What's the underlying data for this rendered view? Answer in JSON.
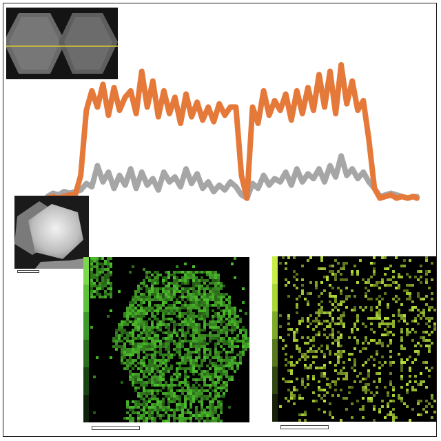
{
  "figure": {
    "background": "#ffffff",
    "border_color": "#1a1a1a"
  },
  "insets": {
    "top_image": {
      "icon": "tem-hexagonal-particles-image",
      "line_scan_color": "#d8c83a"
    },
    "stem_image": {
      "icon": "stem-hexagonal-particle-image"
    }
  },
  "maps": [
    {
      "icon": "elemental-map-green",
      "color": "#4ec02e",
      "legend_colors": [
        "#7ad84a",
        "#5cc23a",
        "#3f9a2c",
        "#2b6e20",
        "#184414",
        "#0c200a"
      ]
    },
    {
      "icon": "elemental-map-yellow-green",
      "color": "#b6e03a",
      "legend_colors": [
        "#c8ec48",
        "#a8d838",
        "#7eaa2a",
        "#56781e",
        "#324614",
        "#18200a"
      ]
    }
  ],
  "chart_data": {
    "type": "line",
    "title": "",
    "xlabel": "",
    "ylabel": "",
    "grid": false,
    "legend": "none",
    "xlim": [
      0,
      100
    ],
    "ylim": [
      0,
      100
    ],
    "series": [
      {
        "color": "#e5793a",
        "x": [
          0,
          1.5,
          3,
          4.5,
          6,
          7.5,
          9,
          10.5,
          12,
          13.5,
          15,
          16.5,
          18,
          19.5,
          21,
          22.5,
          24,
          25.5,
          27,
          28.5,
          30,
          31.5,
          33,
          34.5,
          36,
          37.5,
          39,
          40.5,
          42,
          43.5,
          45,
          46.5,
          48,
          49.5,
          51,
          52.5,
          54,
          55.5,
          57,
          58.5,
          60,
          61.5,
          63,
          64.5,
          66,
          67.5,
          69,
          70.5,
          72,
          73.5,
          75,
          76.5,
          78,
          79.5,
          81,
          82.5,
          84,
          85.5,
          87,
          88.5,
          90,
          91.5,
          93,
          94.5,
          96,
          97.5,
          99,
          100
        ],
        "y": [
          4,
          5,
          4,
          5,
          6,
          6,
          18,
          58,
          70,
          60,
          74,
          55,
          72,
          58,
          66,
          70,
          56,
          82,
          60,
          76,
          54,
          70,
          56,
          66,
          50,
          68,
          54,
          63,
          52,
          60,
          51,
          62,
          55,
          60,
          60,
          18,
          4,
          60,
          50,
          70,
          55,
          64,
          58,
          68,
          52,
          70,
          56,
          72,
          58,
          80,
          60,
          82,
          56,
          86,
          62,
          76,
          58,
          64,
          40,
          10,
          4,
          5,
          6,
          4,
          5,
          4,
          5,
          4
        ]
      },
      {
        "color": "#a6a6a6",
        "x": [
          0,
          1.5,
          3,
          4.5,
          6,
          7.5,
          9,
          10.5,
          12,
          13.5,
          15,
          16.5,
          18,
          19.5,
          21,
          22.5,
          24,
          25.5,
          27,
          28.5,
          30,
          31.5,
          33,
          34.5,
          36,
          37.5,
          39,
          40.5,
          42,
          43.5,
          45,
          46.5,
          48,
          49.5,
          51,
          52.5,
          54,
          55.5,
          57,
          58.5,
          60,
          61.5,
          63,
          64.5,
          66,
          67.5,
          69,
          70.5,
          72,
          73.5,
          75,
          76.5,
          78,
          79.5,
          81,
          82.5,
          84,
          85.5,
          87,
          88.5,
          90,
          91.5,
          93,
          94.5,
          96,
          97.5,
          99,
          100
        ],
        "y": [
          5,
          7,
          6,
          8,
          7,
          8,
          9,
          13,
          11,
          24,
          14,
          20,
          10,
          18,
          12,
          22,
          10,
          20,
          12,
          16,
          9,
          20,
          14,
          17,
          11,
          22,
          13,
          19,
          10,
          14,
          8,
          12,
          9,
          14,
          11,
          6,
          4,
          13,
          10,
          18,
          12,
          16,
          14,
          20,
          12,
          22,
          14,
          19,
          16,
          22,
          14,
          24,
          17,
          30,
          18,
          22,
          16,
          20,
          14,
          10,
          5,
          6,
          7,
          6,
          5,
          4,
          5,
          5
        ]
      }
    ]
  }
}
